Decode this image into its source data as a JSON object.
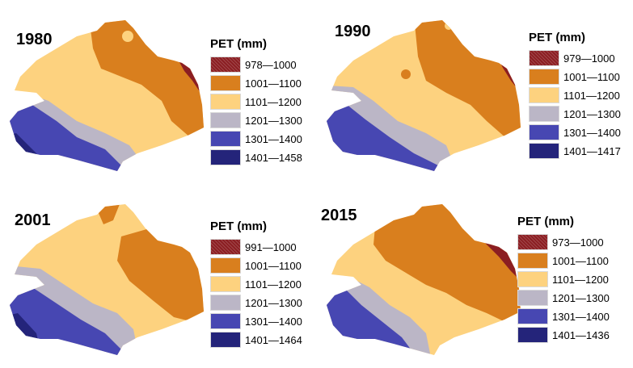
{
  "legend_title": "PET (mm)",
  "colors": {
    "c1": "#8b1e22",
    "c2": "#d97f1e",
    "c3": "#fdd27f",
    "c4": "#bbb6c6",
    "c5": "#4747b2",
    "c6": "#24247a"
  },
  "panels": [
    {
      "year": "1980",
      "legend": [
        "978—1000",
        "1001—1100",
        "1101—1200",
        "1201—1300",
        "1301—1400",
        "1401—1458"
      ]
    },
    {
      "year": "1990",
      "legend": [
        "979—1000",
        "1001—1100",
        "1101—1200",
        "1201—1300",
        "1301—1400",
        "1401—1417"
      ]
    },
    {
      "year": "2001",
      "legend": [
        "991—1000",
        "1001—1100",
        "1101—1200",
        "1201—1300",
        "1301—1400",
        "1401—1464"
      ]
    },
    {
      "year": "2015",
      "legend": [
        "973—1000",
        "1001—1100",
        "1101—1200",
        "1201—1300",
        "1301—1400",
        "1401—1436"
      ]
    }
  ]
}
